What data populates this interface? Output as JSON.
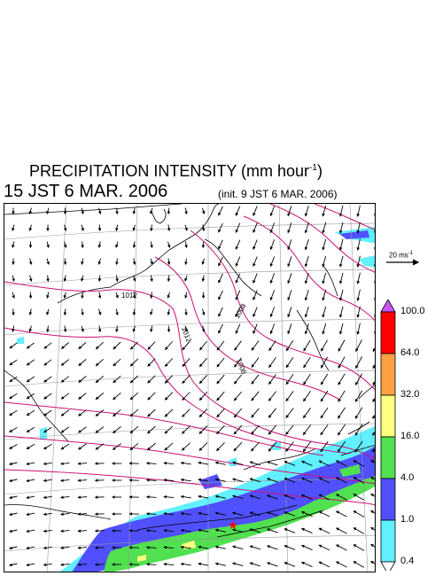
{
  "title": {
    "main": "PRECIPITATION INTENSITY (mm hour",
    "unit_exp": "-1",
    "close": ")"
  },
  "valid_time": "15 JST 6 MAR. 2006",
  "init_time": "(init. 9 JST 6 MAR. 2006)",
  "wind_reference": {
    "label": "20 ms",
    "unit_exp": "-1"
  },
  "isobars": [
    {
      "label": "1012"
    },
    {
      "label": "1012"
    },
    {
      "label": "1008"
    },
    {
      "label": "1008"
    }
  ],
  "marker": {
    "symbol": "★",
    "color": "#ff0000"
  },
  "colorbar": {
    "levels": [
      "100.0",
      "64.0",
      "32.0",
      "16.0",
      "4.0",
      "1.0",
      "0.4"
    ],
    "colors": [
      "#ff0000",
      "#ffa040",
      "#ffff80",
      "#50e050",
      "#5050ff",
      "#60f0ff"
    ],
    "top_arrow_color": "#cc55ff",
    "bottom_arrow_color": "#ffffff"
  },
  "colors": {
    "isobar": "#cc1177",
    "grid": "#999999",
    "coast": "#000000"
  }
}
